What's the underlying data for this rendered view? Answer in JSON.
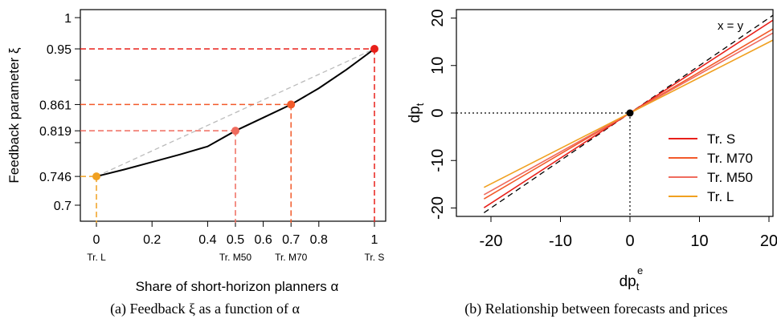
{
  "chart_data": [
    {
      "type": "line",
      "caption": "(a) Feedback ξ as a function of α",
      "xlabel": "Share of short-horizon planners α",
      "ylabel": "Feedback parameter ξ",
      "xlim": [
        0,
        1
      ],
      "ylim": [
        0.7,
        1
      ],
      "x_ticks": [
        0,
        0.2,
        0.4,
        0.5,
        0.6,
        0.7,
        0.8,
        1
      ],
      "x_tick_labels": [
        "0",
        "0.2",
        "0.4",
        "0.5",
        "0.6",
        "0.7",
        "0.8",
        "1"
      ],
      "x_tick_colors": [
        "#f0a020",
        "#000000",
        "#000000",
        "#ef6b5e",
        "#000000",
        "#f25a2a",
        "#000000",
        "#e8201a"
      ],
      "y_ticks": [
        0.7,
        0.746,
        0.8,
        0.819,
        0.861,
        0.9,
        0.95,
        1
      ],
      "y_tick_labels": [
        "0.7",
        "0.746",
        "",
        "0.819",
        "0.861",
        "",
        "0.95",
        "1"
      ],
      "y_tick_colors": [
        "#000000",
        "#f0a020",
        "#000000",
        "#ef6b5e",
        "#f25a2a",
        "#000000",
        "#e8201a",
        "#000000"
      ],
      "curve": {
        "x": [
          0,
          0.1,
          0.2,
          0.3,
          0.4,
          0.5,
          0.6,
          0.7,
          0.8,
          0.9,
          1.0
        ],
        "y": [
          0.746,
          0.757,
          0.769,
          0.781,
          0.794,
          0.819,
          0.84,
          0.861,
          0.887,
          0.917,
          0.95
        ],
        "color": "#000000"
      },
      "chord": {
        "x": [
          0,
          1
        ],
        "y": [
          0.746,
          0.95
        ],
        "color": "#bbbbbb"
      },
      "points": [
        {
          "label": "Tr. L",
          "x": 0,
          "y": 0.746,
          "color": "#f0a020"
        },
        {
          "label": "Tr. M50",
          "x": 0.5,
          "y": 0.819,
          "color": "#ef6b5e"
        },
        {
          "label": "Tr. M70",
          "x": 0.7,
          "y": 0.861,
          "color": "#f25a2a"
        },
        {
          "label": "Tr. S",
          "x": 1,
          "y": 0.95,
          "color": "#e8201a"
        }
      ]
    },
    {
      "type": "line",
      "caption": "(b) Relationship between forecasts and prices",
      "xlabel": "dp",
      "xlabel_sub": "t",
      "xlabel_sup": "e",
      "ylabel": "dp",
      "ylabel_sub": "t",
      "xlim": [
        -21,
        21
      ],
      "ylim": [
        -21,
        21
      ],
      "x_ticks": [
        -20,
        -10,
        0,
        10,
        20
      ],
      "y_ticks": [
        -20,
        -10,
        0,
        10,
        20
      ],
      "identity_label": "x = y",
      "legend_position": "right",
      "series": [
        {
          "name": "Tr. S",
          "slope": 0.95,
          "color": "#e8201a"
        },
        {
          "name": "Tr. M70",
          "slope": 0.861,
          "color": "#f25a2a"
        },
        {
          "name": "Tr. M50",
          "slope": 0.819,
          "color": "#ef6b5e"
        },
        {
          "name": "Tr. L",
          "slope": 0.746,
          "color": "#f0a020"
        }
      ],
      "origin_point": {
        "x": 0,
        "y": 0
      }
    }
  ]
}
